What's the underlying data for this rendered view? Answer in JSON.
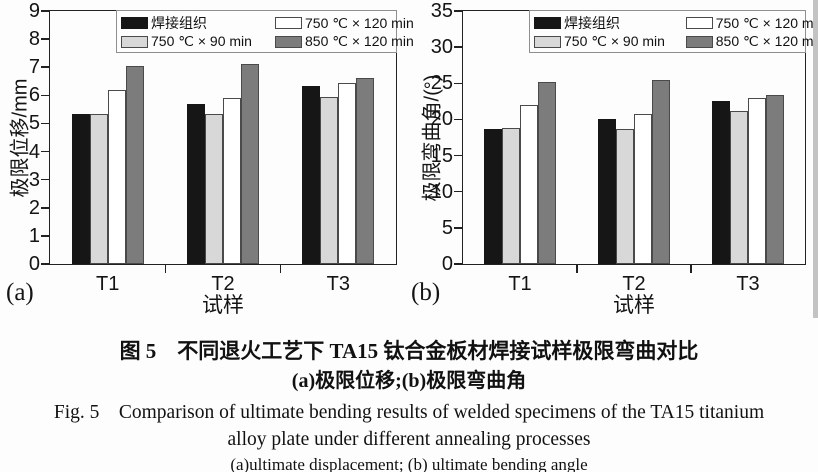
{
  "figure": {
    "panel_a_label": "(a)",
    "panel_b_label": "(b)"
  },
  "caption": {
    "zh_title": "图 5　不同退火工艺下 TA15 钛合金板材焊接试样极限弯曲对比",
    "zh_subtitle": "(a)极限位移;(b)极限弯曲角",
    "en_title_line1": "Fig. 5　Comparison of ultimate bending results of welded specimens of the TA15 titanium",
    "en_title_line2": "alloy plate under different annealing processes",
    "en_subtitle": "(a)ultimate displacement; (b) ultimate bending angle"
  },
  "chart_data": [
    {
      "type": "bar",
      "panel": "(a)",
      "xlabel": "试样",
      "ylabel": "极限位移/mm",
      "categories": [
        "T1",
        "T2",
        "T3"
      ],
      "series": [
        {
          "name": "焊接组织",
          "fill": "#161616",
          "edge": "#161616",
          "values": [
            5.35,
            5.7,
            6.35
          ]
        },
        {
          "name": "750 ℃ × 90 min",
          "fill": "#d8d8d8",
          "edge": "#4a4a4a",
          "values": [
            5.35,
            5.35,
            5.95
          ]
        },
        {
          "name": "750 ℃ × 120 min",
          "fill": "#ffffff",
          "edge": "#4a4a4a",
          "values": [
            6.2,
            5.9,
            6.45
          ]
        },
        {
          "name": "850 ℃ × 120 min",
          "fill": "#7c7c7c",
          "edge": "#4a4a4a",
          "values": [
            7.05,
            7.1,
            6.6
          ]
        }
      ],
      "ylim": [
        0,
        9
      ],
      "yticks": [
        0,
        1,
        2,
        3,
        4,
        5,
        6,
        7,
        8,
        9
      ],
      "grid": false,
      "legend_position": "top-right-inside"
    },
    {
      "type": "bar",
      "panel": "(b)",
      "xlabel": "试样",
      "ylabel": "极限弯曲角/(°)",
      "categories": [
        "T1",
        "T2",
        "T3"
      ],
      "series": [
        {
          "name": "焊接组织",
          "fill": "#161616",
          "edge": "#161616",
          "values": [
            18.7,
            20.1,
            22.5
          ]
        },
        {
          "name": "750 ℃ × 90 min",
          "fill": "#d8d8d8",
          "edge": "#4a4a4a",
          "values": [
            18.8,
            18.7,
            21.2
          ]
        },
        {
          "name": "750 ℃ × 120 min",
          "fill": "#ffffff",
          "edge": "#4a4a4a",
          "values": [
            22.0,
            20.8,
            22.9
          ]
        },
        {
          "name": "850 ℃ × 120 min",
          "fill": "#7c7c7c",
          "edge": "#4a4a4a",
          "values": [
            25.2,
            25.5,
            23.4
          ]
        }
      ],
      "ylim": [
        0,
        35
      ],
      "yticks": [
        0,
        5,
        10,
        15,
        20,
        25,
        30,
        35
      ],
      "grid": false,
      "legend_position": "top-right-inside"
    }
  ]
}
